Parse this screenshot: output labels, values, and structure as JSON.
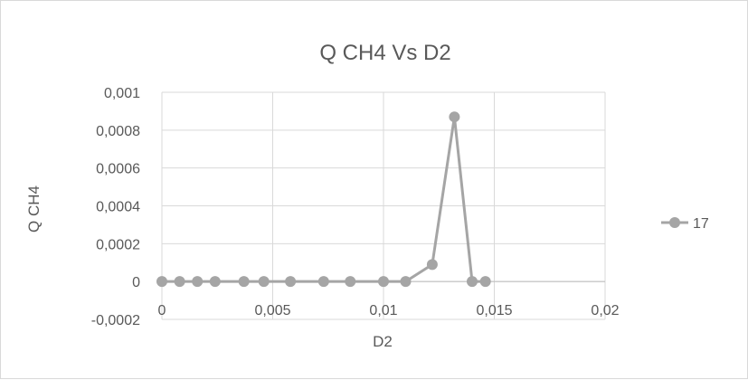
{
  "chart_data": {
    "type": "scatter",
    "title": "Q CH4 Vs D2",
    "xlabel": "D2",
    "ylabel": "Q CH4",
    "xlim": [
      0,
      0.02
    ],
    "ylim": [
      -0.0002,
      0.001
    ],
    "x_ticks": [
      "0",
      "0,005",
      "0,01",
      "0,015",
      "0,02"
    ],
    "y_ticks": [
      "0,001",
      "0,0008",
      "0,0006",
      "0,0004",
      "0,0002",
      "0",
      "-0,0002"
    ],
    "x_tick_values": [
      0,
      0.005,
      0.01,
      0.015,
      0.02
    ],
    "y_tick_values": [
      0.001,
      0.0008,
      0.0006,
      0.0004,
      0.0002,
      0,
      -0.0002
    ],
    "grid": true,
    "legend_position": "right",
    "colors": {
      "series": "#a5a5a5",
      "grid": "#d9d9d9",
      "text": "#595959"
    },
    "series": [
      {
        "name": "17",
        "x": [
          0,
          0.0008,
          0.0016,
          0.0024,
          0.0037,
          0.0046,
          0.0058,
          0.0073,
          0.0085,
          0.01,
          0.011,
          0.0122,
          0.0132,
          0.014,
          0.0146
        ],
        "y": [
          0,
          0,
          0,
          0,
          0,
          0,
          0,
          0,
          0,
          0,
          0,
          9e-05,
          0.00087,
          0,
          0
        ]
      }
    ]
  }
}
